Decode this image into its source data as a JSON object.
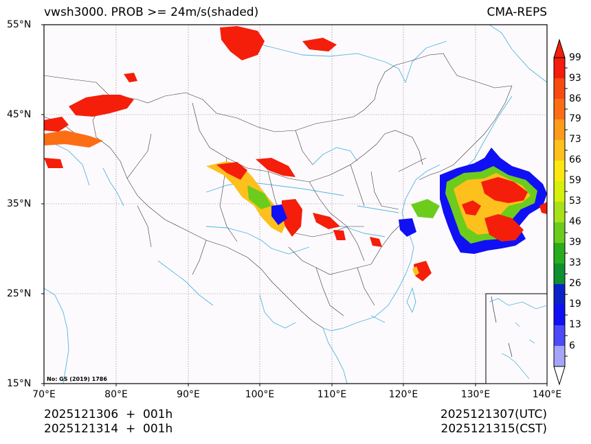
{
  "header": {
    "title_left": "vwsh3000. PROB >= 24m/s(shaded)",
    "title_right": "CMA-REPS"
  },
  "map": {
    "lat_labels": [
      "55°N",
      "45°N",
      "35°N",
      "25°N",
      "15°N"
    ],
    "lon_labels": [
      "70°E",
      "80°E",
      "90°E",
      "100°E",
      "110°E",
      "120°E",
      "130°E",
      "140°E"
    ],
    "approval_number": "No: GS (2019) 1786",
    "land_color": "#fdfafd",
    "border_color": "#333333",
    "water_color": "#4fb6e0"
  },
  "colorbar": {
    "labels": [
      "99",
      "93",
      "86",
      "79",
      "73",
      "66",
      "59",
      "53",
      "46",
      "39",
      "33",
      "26",
      "19",
      "13",
      "6"
    ],
    "colors": [
      "#f41e0a",
      "#f94a0f",
      "#fb6e14",
      "#fc9a1a",
      "#fdc01c",
      "#fbe812",
      "#d6ef0d",
      "#a6e11a",
      "#6ccc1c",
      "#2aad1c",
      "#0f8f30",
      "#0a22c8",
      "#1010f5",
      "#4a4af8",
      "#a4a4f8"
    ]
  },
  "footer": {
    "init_utc": "2025121306  +  001h",
    "init_cst": "2025121314  +  001h",
    "valid_utc": "2025121307(UTC)",
    "valid_cst": "2025121315(CST)"
  }
}
